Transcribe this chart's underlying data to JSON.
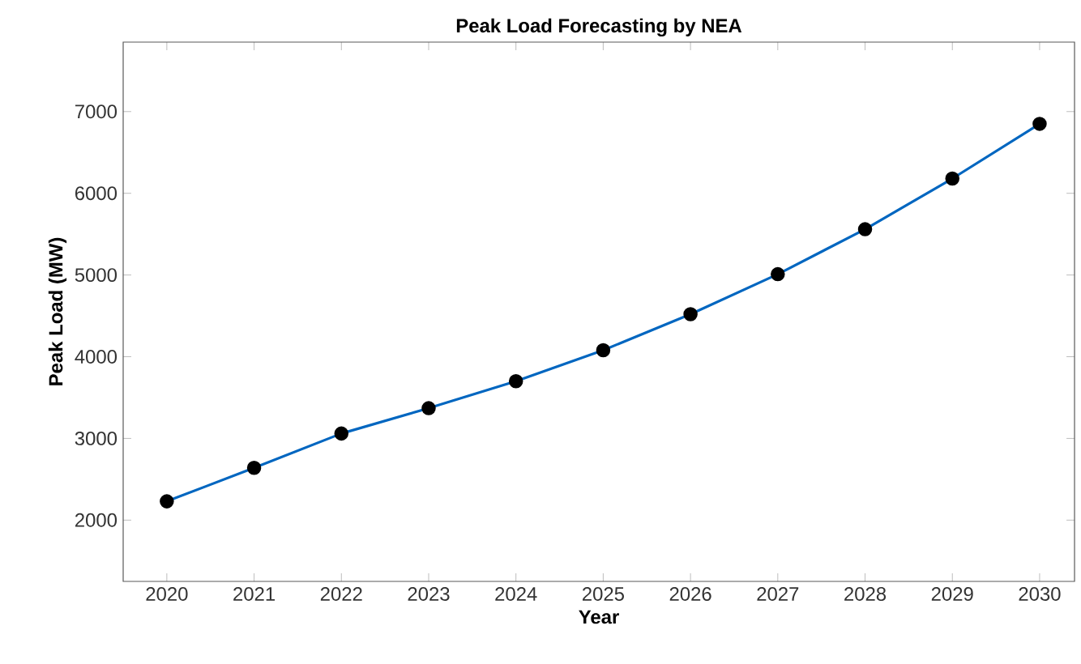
{
  "chart_data": {
    "type": "line",
    "title": "Peak Load Forecasting by NEA",
    "xlabel": "Year",
    "ylabel": "Peak Load (MW)",
    "x": [
      2020,
      2021,
      2022,
      2023,
      2024,
      2025,
      2026,
      2027,
      2028,
      2029,
      2030
    ],
    "series": [
      {
        "color": "#0066c0",
        "values": [
          2230,
          2640,
          3060,
          3370,
          3700,
          4080,
          4520,
          5010,
          5560,
          6180,
          6850
        ]
      }
    ],
    "xlim": [
      2019.5,
      2030.4
    ],
    "ylim": [
      1250,
      7850
    ],
    "xticks": [
      2020,
      2021,
      2022,
      2023,
      2024,
      2025,
      2026,
      2027,
      2028,
      2029,
      2030
    ],
    "yticks": [
      2000,
      3000,
      4000,
      5000,
      6000,
      7000
    ],
    "grid": false,
    "marker": "circle",
    "line_style": "solid"
  }
}
